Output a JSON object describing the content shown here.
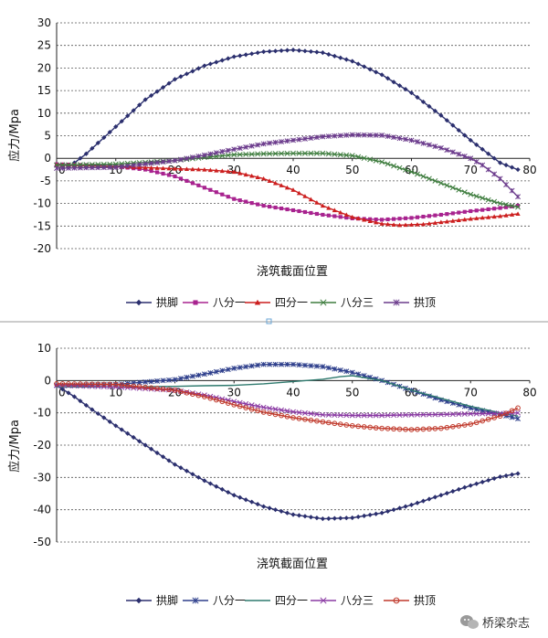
{
  "watermark": "桥梁杂志",
  "chart_data": [
    {
      "type": "line",
      "xlabel": "浇筑截面位置",
      "ylabel": "应力/Mpa",
      "xlim": [
        0,
        80
      ],
      "ylim": [
        -20,
        30
      ],
      "xticks": [
        0,
        10,
        20,
        30,
        40,
        50,
        60,
        70,
        80
      ],
      "yticks": [
        30,
        25,
        20,
        15,
        10,
        5,
        0,
        -5,
        -10,
        -15,
        -20
      ],
      "grid": "horizontal dotted",
      "legend_position": "bottom",
      "series": [
        {
          "name": "拱脚",
          "color": "#2b2f6e",
          "marker": "diamond",
          "points": [
            [
              2,
              -2
            ],
            [
              5,
              1
            ],
            [
              10,
              7
            ],
            [
              15,
              13
            ],
            [
              20,
              17.5
            ],
            [
              25,
              20.5
            ],
            [
              30,
              22.5
            ],
            [
              35,
              23.6
            ],
            [
              40,
              24
            ],
            [
              45,
              23.4
            ],
            [
              50,
              21.5
            ],
            [
              55,
              18.5
            ],
            [
              60,
              14.5
            ],
            [
              65,
              9.5
            ],
            [
              70,
              4
            ],
            [
              75,
              -1
            ],
            [
              78,
              -2.5
            ]
          ]
        },
        {
          "name": "八分一",
          "color": "#a8238f",
          "marker": "square",
          "points": [
            [
              0,
              -1.3
            ],
            [
              5,
              -1.5
            ],
            [
              10,
              -1.8
            ],
            [
              15,
              -2.5
            ],
            [
              20,
              -4
            ],
            [
              25,
              -6.5
            ],
            [
              30,
              -9
            ],
            [
              35,
              -10.5
            ],
            [
              40,
              -11.5
            ],
            [
              45,
              -12.5
            ],
            [
              50,
              -13.3
            ],
            [
              55,
              -13.6
            ],
            [
              60,
              -13.2
            ],
            [
              65,
              -12.5
            ],
            [
              70,
              -11.7
            ],
            [
              75,
              -11
            ],
            [
              78,
              -10.5
            ]
          ]
        },
        {
          "name": "四分一",
          "color": "#cc1f1f",
          "marker": "triangle",
          "points": [
            [
              0,
              -1.5
            ],
            [
              10,
              -1.8
            ],
            [
              20,
              -2.3
            ],
            [
              25,
              -2.5
            ],
            [
              30,
              -3
            ],
            [
              35,
              -4.5
            ],
            [
              40,
              -7
            ],
            [
              45,
              -10.5
            ],
            [
              50,
              -13
            ],
            [
              55,
              -14.5
            ],
            [
              58,
              -14.8
            ],
            [
              62,
              -14.6
            ],
            [
              66,
              -14
            ],
            [
              70,
              -13.4
            ],
            [
              75,
              -12.8
            ],
            [
              78,
              -12.3
            ]
          ]
        },
        {
          "name": "八分三",
          "color": "#3e7d3e",
          "marker": "x",
          "points": [
            [
              0,
              -1.5
            ],
            [
              10,
              -1.3
            ],
            [
              20,
              -0.5
            ],
            [
              25,
              0.2
            ],
            [
              30,
              0.8
            ],
            [
              35,
              1
            ],
            [
              40,
              1.1
            ],
            [
              45,
              1.1
            ],
            [
              50,
              0.6
            ],
            [
              55,
              -0.8
            ],
            [
              60,
              -3
            ],
            [
              65,
              -5.5
            ],
            [
              70,
              -8
            ],
            [
              75,
              -10
            ],
            [
              78,
              -10.8
            ]
          ]
        },
        {
          "name": "拱顶",
          "color": "#6b3b8c",
          "marker": "star",
          "points": [
            [
              0,
              -2.2
            ],
            [
              10,
              -2
            ],
            [
              20,
              -0.5
            ],
            [
              25,
              0.7
            ],
            [
              30,
              2
            ],
            [
              35,
              3.2
            ],
            [
              40,
              4
            ],
            [
              45,
              4.8
            ],
            [
              50,
              5.2
            ],
            [
              55,
              5.1
            ],
            [
              60,
              4
            ],
            [
              65,
              2.3
            ],
            [
              70,
              0
            ],
            [
              72,
              -1.5
            ],
            [
              75,
              -4.5
            ],
            [
              78,
              -8.5
            ]
          ]
        }
      ]
    },
    {
      "type": "line",
      "xlabel": "浇筑截面位置",
      "ylabel": "应力/Mpa",
      "xlim": [
        0,
        80
      ],
      "ylim": [
        -50,
        10
      ],
      "xticks": [
        0,
        10,
        20,
        30,
        40,
        50,
        60,
        70,
        80
      ],
      "yticks": [
        10,
        0,
        -10,
        -20,
        -30,
        -40,
        -50
      ],
      "grid": "horizontal dotted",
      "legend_position": "bottom",
      "series": [
        {
          "name": "拱脚",
          "color": "#2b2f6e",
          "marker": "diamond",
          "points": [
            [
              0,
              -1.5
            ],
            [
              3,
              -5
            ],
            [
              6,
              -9
            ],
            [
              10,
              -14
            ],
            [
              15,
              -20
            ],
            [
              20,
              -26
            ],
            [
              25,
              -31
            ],
            [
              30,
              -35.5
            ],
            [
              35,
              -39
            ],
            [
              40,
              -41.5
            ],
            [
              45,
              -42.8
            ],
            [
              50,
              -42.5
            ],
            [
              55,
              -41
            ],
            [
              60,
              -38.5
            ],
            [
              65,
              -35.5
            ],
            [
              70,
              -32.5
            ],
            [
              75,
              -29.8
            ],
            [
              78,
              -28.8
            ]
          ]
        },
        {
          "name": "八分一",
          "color": "#2e3f8c",
          "marker": "star",
          "points": [
            [
              0,
              -1.5
            ],
            [
              10,
              -1.2
            ],
            [
              20,
              0.3
            ],
            [
              25,
              2
            ],
            [
              30,
              3.8
            ],
            [
              35,
              5
            ],
            [
              40,
              5
            ],
            [
              45,
              4.3
            ],
            [
              50,
              2.5
            ],
            [
              55,
              0
            ],
            [
              60,
              -3
            ],
            [
              65,
              -6
            ],
            [
              70,
              -8.5
            ],
            [
              75,
              -10.5
            ],
            [
              78,
              -11.8
            ]
          ]
        },
        {
          "name": "四分一",
          "color": "#2f7a6e",
          "marker": "none",
          "points": [
            [
              0,
              -2
            ],
            [
              10,
              -2
            ],
            [
              20,
              -1.8
            ],
            [
              25,
              -1.6
            ],
            [
              30,
              -1.5
            ],
            [
              35,
              -1
            ],
            [
              40,
              -0.3
            ],
            [
              45,
              0.4
            ],
            [
              48,
              1.2
            ],
            [
              50,
              1.5
            ],
            [
              55,
              0
            ],
            [
              60,
              -3
            ],
            [
              65,
              -5.5
            ],
            [
              70,
              -8
            ],
            [
              75,
              -10
            ],
            [
              78,
              -11
            ]
          ]
        },
        {
          "name": "八分三",
          "color": "#8a3aa3",
          "marker": "x",
          "points": [
            [
              0,
              -1.5
            ],
            [
              10,
              -2
            ],
            [
              20,
              -3
            ],
            [
              25,
              -4.5
            ],
            [
              30,
              -6.5
            ],
            [
              35,
              -8.3
            ],
            [
              40,
              -9.7
            ],
            [
              45,
              -10.6
            ],
            [
              50,
              -10.8
            ],
            [
              55,
              -10.8
            ],
            [
              60,
              -10.6
            ],
            [
              65,
              -10.5
            ],
            [
              70,
              -10.3
            ],
            [
              75,
              -10.2
            ],
            [
              78,
              -10
            ]
          ]
        },
        {
          "name": "拱顶",
          "color": "#c0392b",
          "marker": "circle",
          "points": [
            [
              0,
              -1
            ],
            [
              10,
              -1.2
            ],
            [
              20,
              -3
            ],
            [
              25,
              -5
            ],
            [
              30,
              -7.5
            ],
            [
              35,
              -9.8
            ],
            [
              40,
              -11.5
            ],
            [
              45,
              -12.8
            ],
            [
              50,
              -14
            ],
            [
              55,
              -14.8
            ],
            [
              60,
              -15.2
            ],
            [
              65,
              -14.8
            ],
            [
              70,
              -13.5
            ],
            [
              75,
              -11
            ],
            [
              78,
              -8.5
            ]
          ]
        }
      ]
    }
  ]
}
